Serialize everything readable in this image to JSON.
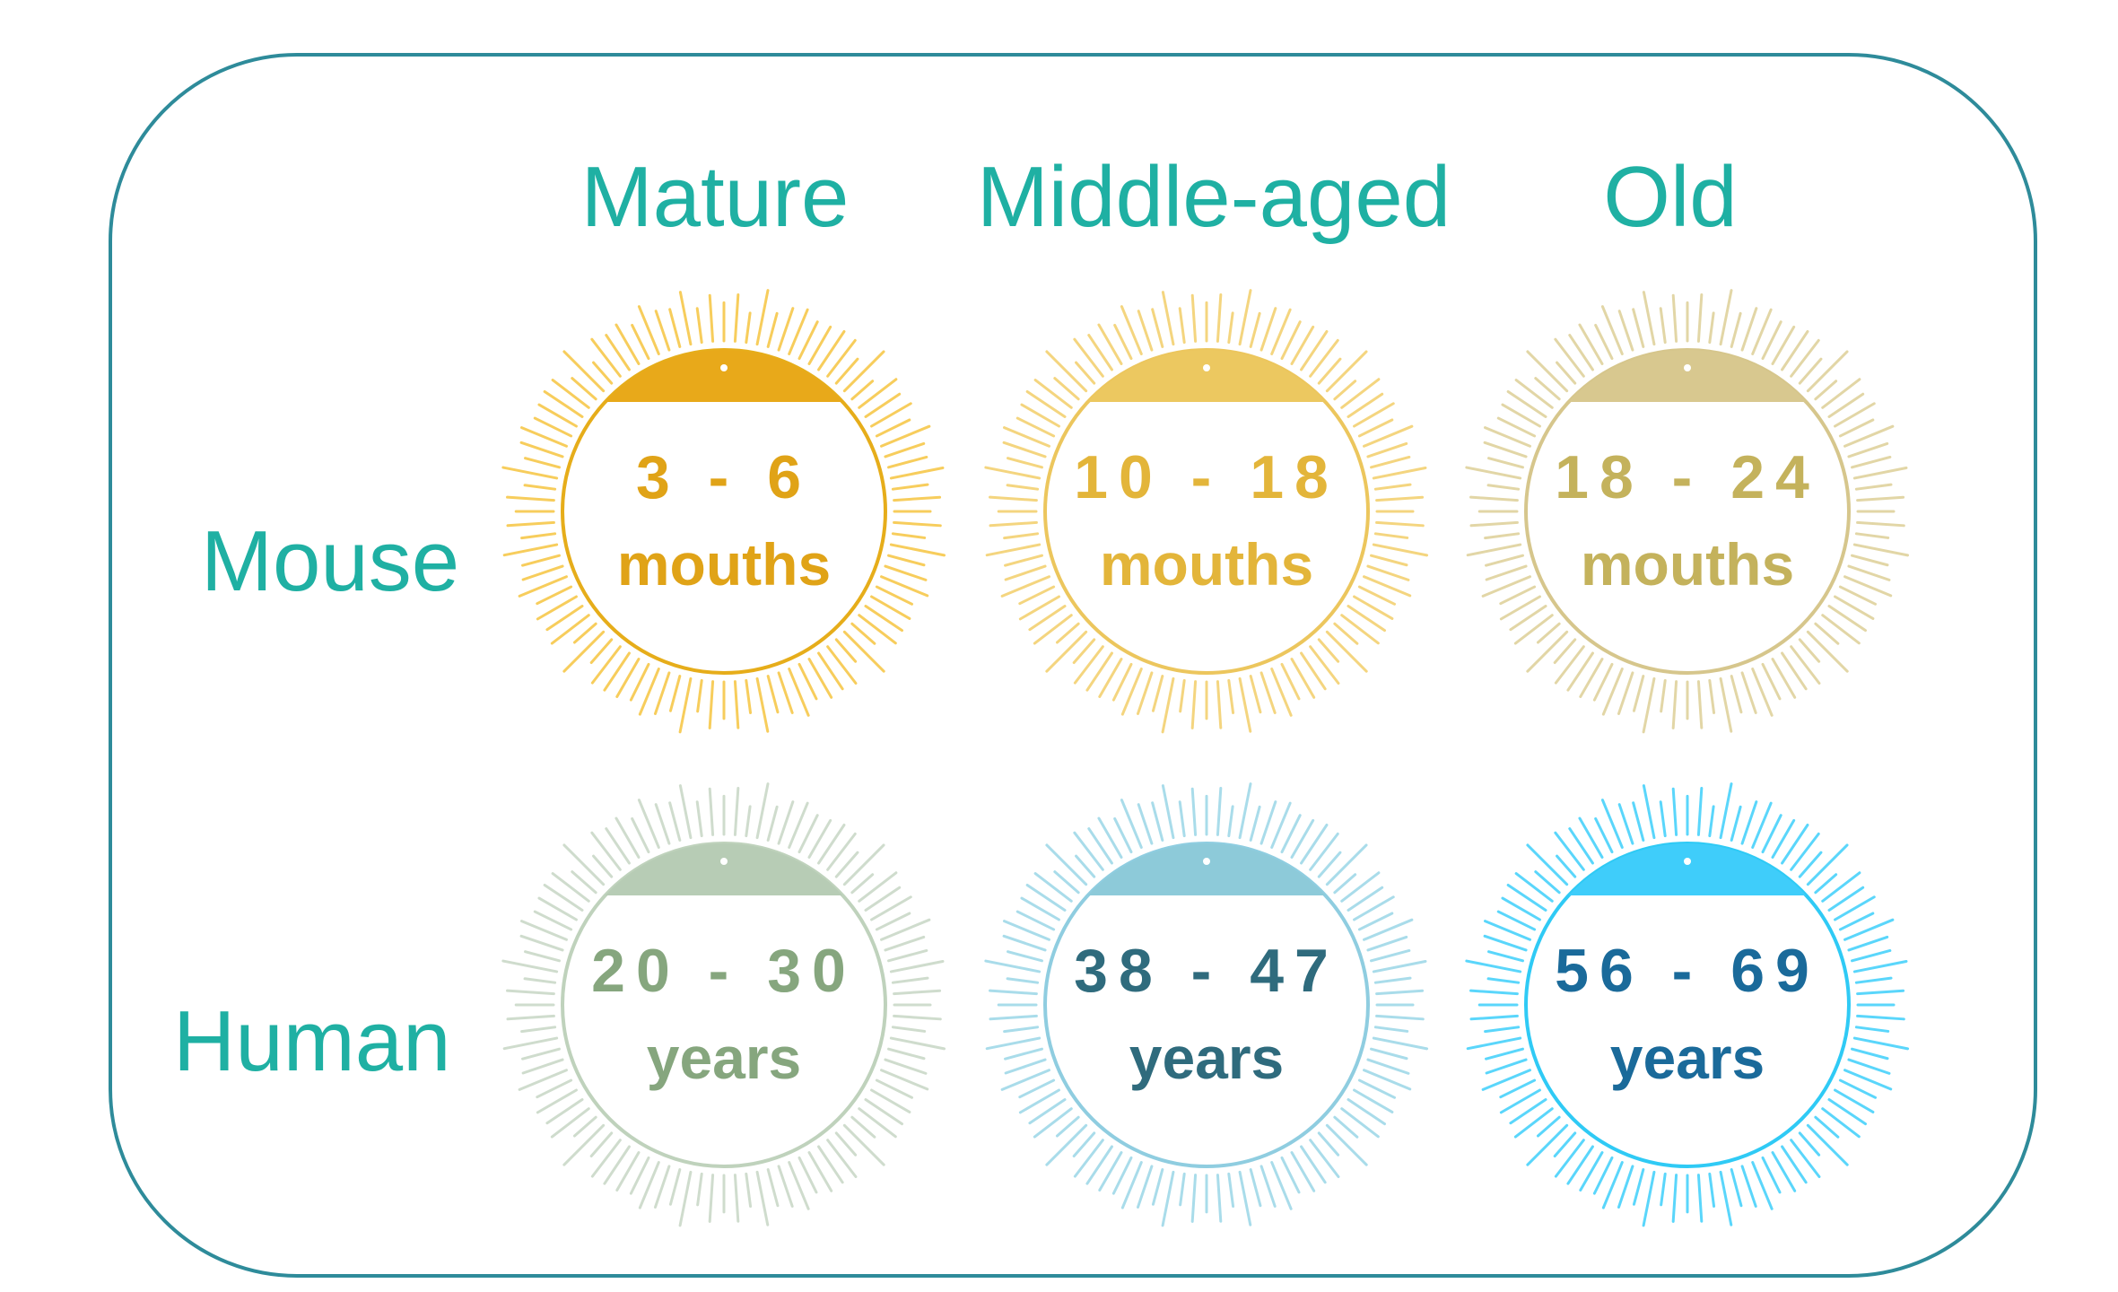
{
  "columns": [
    "Mature",
    "Middle-aged",
    "Old"
  ],
  "rows": [
    "Mouse",
    "Human"
  ],
  "badges": [
    [
      {
        "range": "3 - 6",
        "unit": "mouths",
        "ring_color": "#e6ad1a",
        "cap_color": "#e8a91a",
        "ray_color": "#f7cd5c",
        "text_color": "#e0a317"
      },
      {
        "range": "10 - 18",
        "unit": "mouths",
        "ring_color": "#ecc65d",
        "cap_color": "#ecc860",
        "ray_color": "#f4d57f",
        "text_color": "#e3b53a"
      },
      {
        "range": "18 - 24",
        "unit": "mouths",
        "ring_color": "#d6c68c",
        "cap_color": "#d8c88f",
        "ray_color": "#e2d6a6",
        "text_color": "#c4b25c"
      }
    ],
    [
      {
        "range": "20 - 30",
        "unit": "years",
        "ring_color": "#bfd2bc",
        "cap_color": "#b7ccb5",
        "ray_color": "#cfdccd",
        "text_color": "#86a67e"
      },
      {
        "range": "38 - 47",
        "unit": "years",
        "ring_color": "#8fcde0",
        "cap_color": "#8dcad9",
        "ray_color": "#a9dcea",
        "text_color": "#2f6b7d"
      },
      {
        "range": "56 - 69",
        "unit": "years",
        "ring_color": "#2fcaf5",
        "cap_color": "#3fcdfa",
        "ray_color": "#5ad6fb",
        "text_color": "#1a6a9a"
      }
    ]
  ]
}
